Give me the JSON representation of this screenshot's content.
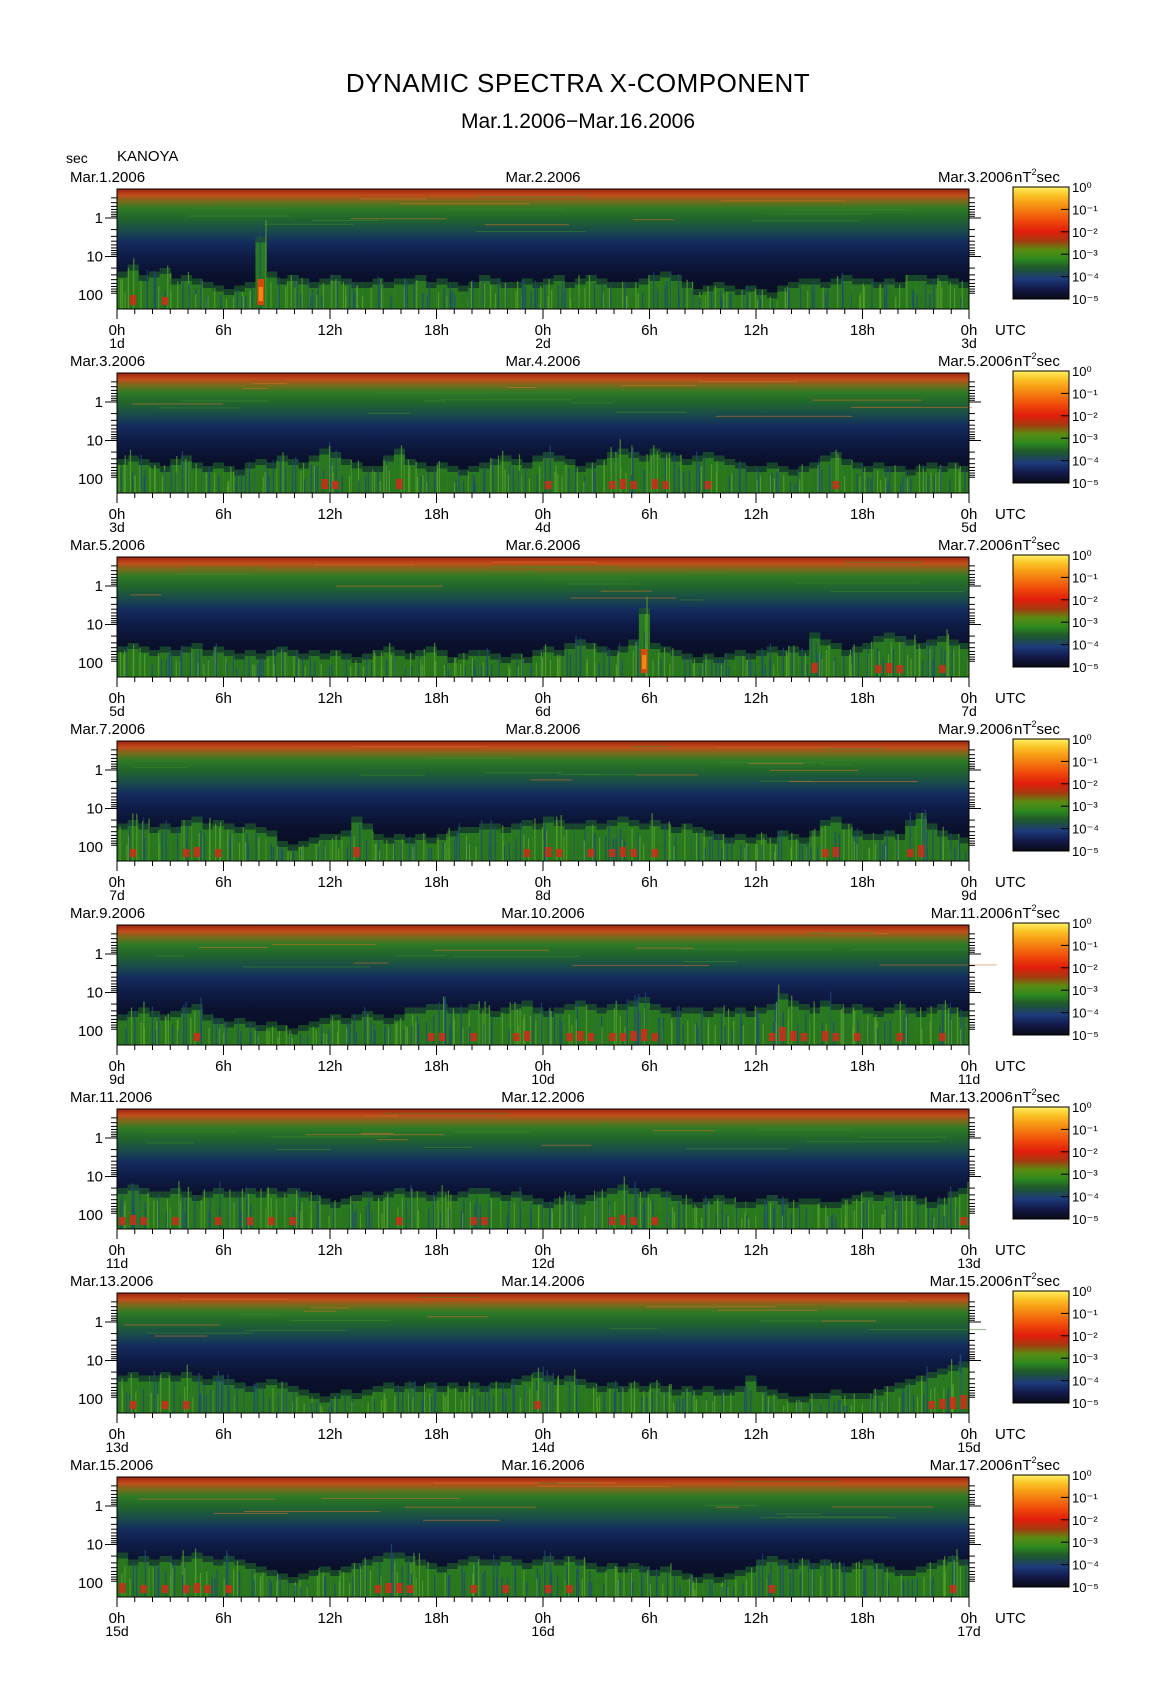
{
  "title": "DYNAMIC SPECTRA X-COMPONENT",
  "subtitle": "Mar.1.2006−Mar.16.2006",
  "station": "KANOYA",
  "period_unit": "sec",
  "power_unit_base": "nT",
  "power_unit_exp": "2",
  "power_unit_suffix": "sec",
  "time_axis_unit": "UTC",
  "chart_data": {
    "type": "heatmap",
    "title": "DYNAMIC SPECTRA X-COMPONENT",
    "subtitle": "Mar.1.2006−Mar.16.2006",
    "y_axis_label": "sec",
    "y_tick_labels": [
      "1",
      "10",
      "100"
    ],
    "y_scale": "log",
    "x_tick_labels": [
      "0h",
      "6h",
      "12h",
      "18h",
      "0h",
      "6h",
      "12h",
      "18h",
      "0h"
    ],
    "colorbar": {
      "unit": "nT²sec",
      "scale": "log",
      "tick_labels": [
        "10⁰",
        "10⁻¹",
        "10⁻²",
        "10⁻³",
        "10⁻⁴",
        "10⁻⁵"
      ],
      "range": [
        1e-05,
        1
      ],
      "colors": [
        "#0a0a14",
        "#131c4f",
        "#1d3a7a",
        "#1f5a2a",
        "#2e8a1e",
        "#5b8a10",
        "#a53a10",
        "#e01e0a",
        "#f04a0a",
        "#f58a12",
        "#fbbf22",
        "#fff060"
      ]
    },
    "panels": [
      {
        "start_date": "Mar.1.2006",
        "mid_date": "Mar.2.2006",
        "end_date": "Mar.3.2006",
        "day_start": "1d",
        "day_mid": "2d",
        "day_end": "3d",
        "activity": [
          0.45,
          0.55,
          0.4,
          0.45,
          0.5,
          0.35,
          0.4,
          0.35,
          0.3,
          0.25,
          0.2,
          0.25,
          0.3,
          0.95,
          0.45,
          0.35,
          0.4,
          0.35,
          0.3,
          0.35,
          0.4,
          0.35,
          0.3,
          0.3,
          0.35,
          0.3,
          0.35,
          0.35,
          0.4,
          0.3,
          0.35,
          0.3,
          0.25,
          0.3,
          0.4,
          0.35,
          0.3,
          0.3,
          0.35,
          0.3,
          0.35,
          0.4,
          0.3,
          0.35,
          0.4,
          0.35,
          0.3,
          0.3,
          0.3,
          0.35,
          0.4,
          0.45,
          0.4,
          0.3,
          0.2,
          0.25,
          0.3,
          0.25,
          0.2,
          0.25,
          0.2,
          0.15,
          0.25,
          0.3,
          0.35,
          0.35,
          0.3,
          0.35,
          0.4,
          0.35,
          0.35,
          0.3,
          0.35,
          0.3,
          0.4,
          0.4,
          0.35,
          0.4,
          0.35,
          0.3
        ]
      },
      {
        "start_date": "Mar.3.2006",
        "mid_date": "Mar.4.2006",
        "end_date": "Mar.5.2006",
        "day_start": "3d",
        "day_mid": "4d",
        "day_end": "5d",
        "activity": [
          0.4,
          0.45,
          0.4,
          0.35,
          0.3,
          0.4,
          0.45,
          0.35,
          0.3,
          0.35,
          0.3,
          0.25,
          0.35,
          0.4,
          0.35,
          0.45,
          0.4,
          0.35,
          0.45,
          0.55,
          0.5,
          0.4,
          0.35,
          0.3,
          0.3,
          0.45,
          0.55,
          0.4,
          0.35,
          0.3,
          0.35,
          0.3,
          0.25,
          0.3,
          0.35,
          0.4,
          0.45,
          0.4,
          0.35,
          0.45,
          0.5,
          0.45,
          0.4,
          0.3,
          0.35,
          0.4,
          0.5,
          0.55,
          0.5,
          0.45,
          0.55,
          0.5,
          0.45,
          0.4,
          0.45,
          0.5,
          0.45,
          0.4,
          0.35,
          0.3,
          0.3,
          0.35,
          0.3,
          0.25,
          0.3,
          0.35,
          0.45,
          0.5,
          0.4,
          0.35,
          0.3,
          0.35,
          0.3,
          0.3,
          0.25,
          0.3,
          0.35,
          0.3,
          0.35,
          0.3
        ]
      },
      {
        "start_date": "Mar.5.2006",
        "mid_date": "Mar.6.2006",
        "end_date": "Mar.7.2006",
        "day_start": "5d",
        "day_mid": "6d",
        "day_end": "7d",
        "activity": [
          0.35,
          0.4,
          0.35,
          0.3,
          0.35,
          0.3,
          0.35,
          0.4,
          0.3,
          0.35,
          0.3,
          0.25,
          0.3,
          0.25,
          0.3,
          0.35,
          0.3,
          0.25,
          0.3,
          0.25,
          0.3,
          0.25,
          0.2,
          0.25,
          0.3,
          0.35,
          0.3,
          0.25,
          0.3,
          0.35,
          0.3,
          0.2,
          0.25,
          0.3,
          0.3,
          0.25,
          0.2,
          0.25,
          0.2,
          0.3,
          0.35,
          0.3,
          0.4,
          0.45,
          0.4,
          0.35,
          0.3,
          0.35,
          0.45,
          0.9,
          0.4,
          0.35,
          0.3,
          0.25,
          0.2,
          0.25,
          0.2,
          0.25,
          0.3,
          0.25,
          0.3,
          0.35,
          0.3,
          0.35,
          0.3,
          0.55,
          0.45,
          0.4,
          0.3,
          0.35,
          0.4,
          0.5,
          0.55,
          0.5,
          0.45,
          0.4,
          0.45,
          0.5,
          0.45,
          0.4
        ]
      },
      {
        "start_date": "Mar.7.2006",
        "mid_date": "Mar.8.2006",
        "end_date": "Mar.9.2006",
        "day_start": "7d",
        "day_mid": "8d",
        "day_end": "9d",
        "activity": [
          0.45,
          0.5,
          0.45,
          0.4,
          0.45,
          0.4,
          0.5,
          0.55,
          0.45,
          0.5,
          0.45,
          0.4,
          0.45,
          0.4,
          0.35,
          0.2,
          0.15,
          0.2,
          0.25,
          0.3,
          0.3,
          0.35,
          0.55,
          0.45,
          0.3,
          0.25,
          0.3,
          0.25,
          0.3,
          0.25,
          0.3,
          0.35,
          0.4,
          0.4,
          0.45,
          0.45,
          0.4,
          0.45,
          0.5,
          0.45,
          0.55,
          0.5,
          0.45,
          0.45,
          0.5,
          0.45,
          0.5,
          0.55,
          0.5,
          0.45,
          0.5,
          0.45,
          0.4,
          0.45,
          0.4,
          0.35,
          0.3,
          0.25,
          0.3,
          0.25,
          0.3,
          0.25,
          0.35,
          0.3,
          0.25,
          0.35,
          0.5,
          0.55,
          0.45,
          0.35,
          0.3,
          0.3,
          0.35,
          0.3,
          0.5,
          0.6,
          0.45,
          0.35,
          0.3,
          0.25
        ]
      },
      {
        "start_date": "Mar.9.2006",
        "mid_date": "Mar.10.2006",
        "end_date": "Mar.11.2006",
        "day_start": "9d",
        "day_mid": "10d",
        "day_end": "11d",
        "activity": [
          0.35,
          0.4,
          0.45,
          0.4,
          0.35,
          0.4,
          0.45,
          0.5,
          0.35,
          0.3,
          0.25,
          0.3,
          0.25,
          0.2,
          0.25,
          0.2,
          0.15,
          0.2,
          0.25,
          0.3,
          0.35,
          0.3,
          0.35,
          0.4,
          0.35,
          0.3,
          0.35,
          0.45,
          0.45,
          0.5,
          0.5,
          0.45,
          0.45,
          0.5,
          0.45,
          0.4,
          0.45,
          0.5,
          0.55,
          0.45,
          0.4,
          0.45,
          0.5,
          0.55,
          0.5,
          0.45,
          0.5,
          0.5,
          0.55,
          0.6,
          0.5,
          0.45,
          0.4,
          0.45,
          0.45,
          0.4,
          0.45,
          0.4,
          0.45,
          0.4,
          0.45,
          0.5,
          0.65,
          0.55,
          0.5,
          0.45,
          0.55,
          0.5,
          0.45,
          0.5,
          0.45,
          0.4,
          0.45,
          0.5,
          0.45,
          0.4,
          0.45,
          0.5,
          0.45,
          0.4
        ]
      },
      {
        "start_date": "Mar.11.2006",
        "mid_date": "Mar.12.2006",
        "end_date": "Mar.13.2006",
        "day_start": "11d",
        "day_mid": "12d",
        "day_end": "13d",
        "activity": [
          0.5,
          0.55,
          0.5,
          0.45,
          0.45,
          0.5,
          0.45,
          0.4,
          0.45,
          0.5,
          0.45,
          0.45,
          0.5,
          0.45,
          0.5,
          0.45,
          0.5,
          0.45,
          0.4,
          0.35,
          0.3,
          0.35,
          0.4,
          0.45,
          0.4,
          0.45,
          0.5,
          0.45,
          0.45,
          0.4,
          0.45,
          0.4,
          0.45,
          0.5,
          0.5,
          0.45,
          0.4,
          0.45,
          0.4,
          0.35,
          0.3,
          0.35,
          0.4,
          0.35,
          0.4,
          0.45,
          0.5,
          0.55,
          0.5,
          0.45,
          0.5,
          0.45,
          0.4,
          0.35,
          0.3,
          0.35,
          0.4,
          0.35,
          0.3,
          0.3,
          0.35,
          0.4,
          0.35,
          0.3,
          0.35,
          0.35,
          0.3,
          0.3,
          0.35,
          0.4,
          0.45,
          0.4,
          0.45,
          0.4,
          0.4,
          0.35,
          0.3,
          0.35,
          0.45,
          0.5
        ]
      },
      {
        "start_date": "Mar.13.2006",
        "mid_date": "Mar.14.2006",
        "end_date": "Mar.15.2006",
        "day_start": "13d",
        "day_mid": "14d",
        "day_end": "15d",
        "activity": [
          0.45,
          0.5,
          0.45,
          0.45,
          0.5,
          0.45,
          0.5,
          0.45,
          0.4,
          0.45,
          0.4,
          0.35,
          0.3,
          0.35,
          0.4,
          0.35,
          0.3,
          0.25,
          0.2,
          0.15,
          0.2,
          0.25,
          0.2,
          0.25,
          0.3,
          0.35,
          0.3,
          0.35,
          0.3,
          0.35,
          0.3,
          0.35,
          0.3,
          0.35,
          0.3,
          0.35,
          0.35,
          0.4,
          0.45,
          0.5,
          0.45,
          0.4,
          0.45,
          0.4,
          0.35,
          0.3,
          0.35,
          0.3,
          0.35,
          0.3,
          0.35,
          0.3,
          0.25,
          0.3,
          0.25,
          0.3,
          0.25,
          0.25,
          0.3,
          0.45,
          0.3,
          0.25,
          0.2,
          0.15,
          0.15,
          0.2,
          0.2,
          0.25,
          0.2,
          0.2,
          0.2,
          0.25,
          0.3,
          0.35,
          0.4,
          0.45,
          0.5,
          0.55,
          0.6,
          0.65
        ]
      },
      {
        "start_date": "Mar.15.2006",
        "mid_date": "Mar.16.2006",
        "end_date": "Mar.17.2006",
        "day_start": "15d",
        "day_mid": "16d",
        "day_end": "17d",
        "activity": [
          0.55,
          0.45,
          0.5,
          0.45,
          0.5,
          0.45,
          0.5,
          0.55,
          0.5,
          0.45,
          0.5,
          0.45,
          0.4,
          0.35,
          0.3,
          0.25,
          0.2,
          0.25,
          0.3,
          0.35,
          0.3,
          0.35,
          0.4,
          0.45,
          0.5,
          0.55,
          0.55,
          0.5,
          0.45,
          0.4,
          0.35,
          0.4,
          0.45,
          0.5,
          0.45,
          0.45,
          0.5,
          0.45,
          0.4,
          0.45,
          0.5,
          0.45,
          0.5,
          0.45,
          0.4,
          0.35,
          0.4,
          0.35,
          0.4,
          0.35,
          0.3,
          0.35,
          0.3,
          0.25,
          0.2,
          0.25,
          0.2,
          0.25,
          0.3,
          0.35,
          0.45,
          0.5,
          0.45,
          0.4,
          0.45,
          0.4,
          0.45,
          0.4,
          0.35,
          0.4,
          0.45,
          0.4,
          0.35,
          0.3,
          0.3,
          0.35,
          0.4,
          0.45,
          0.5,
          0.45
        ]
      }
    ]
  }
}
